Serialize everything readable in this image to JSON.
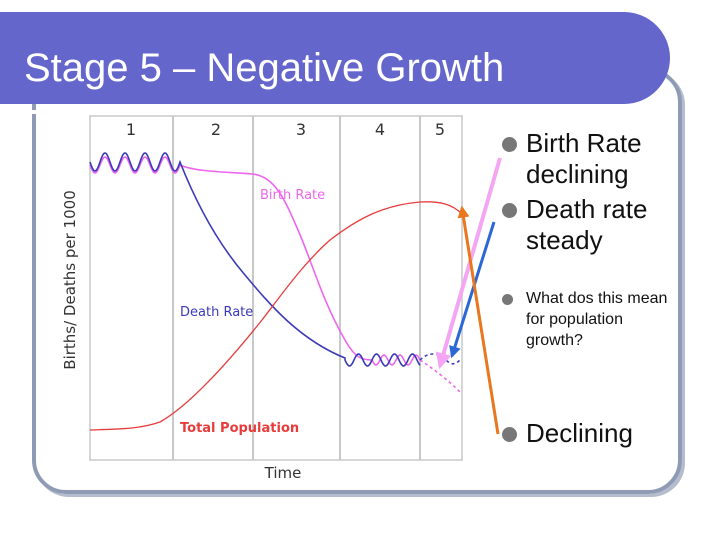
{
  "slide": {
    "title": "Stage 5 – Negative Growth",
    "bullets_primary": [
      "Birth Rate declining",
      "Death rate steady"
    ],
    "bullets_question": [
      "What dos this mean for population growth?"
    ],
    "bullets_answer": [
      "Declining"
    ]
  },
  "chart_data": {
    "type": "line",
    "stages": [
      "1",
      "2",
      "3",
      "4",
      "5"
    ],
    "xlabel": "Time",
    "ylabel": "Births/ Deaths per 1000",
    "series": [
      {
        "name": "Birth Rate",
        "color": "#ee66ee",
        "trend": "high and fluctuating in stage 1, steady high in stage 2, falling through stage 3, low and fluctuating in stage 4, falling in stage 5"
      },
      {
        "name": "Death Rate",
        "color": "#3a3ab8",
        "trend": "high and fluctuating in stage 1, falling through stages 2-3, low and fluctuating in stage 4, steady in stage 5"
      },
      {
        "name": "Total Population",
        "color": "#e83c3c",
        "trend": "low in stage 1, rising through stages 2-4, peaking then declining in stage 5"
      }
    ],
    "grid": true
  },
  "annotations": {
    "arrow_colors": {
      "pink": "#f4a6f4",
      "blue": "#2b68d6",
      "orange": "#e8771e"
    }
  }
}
